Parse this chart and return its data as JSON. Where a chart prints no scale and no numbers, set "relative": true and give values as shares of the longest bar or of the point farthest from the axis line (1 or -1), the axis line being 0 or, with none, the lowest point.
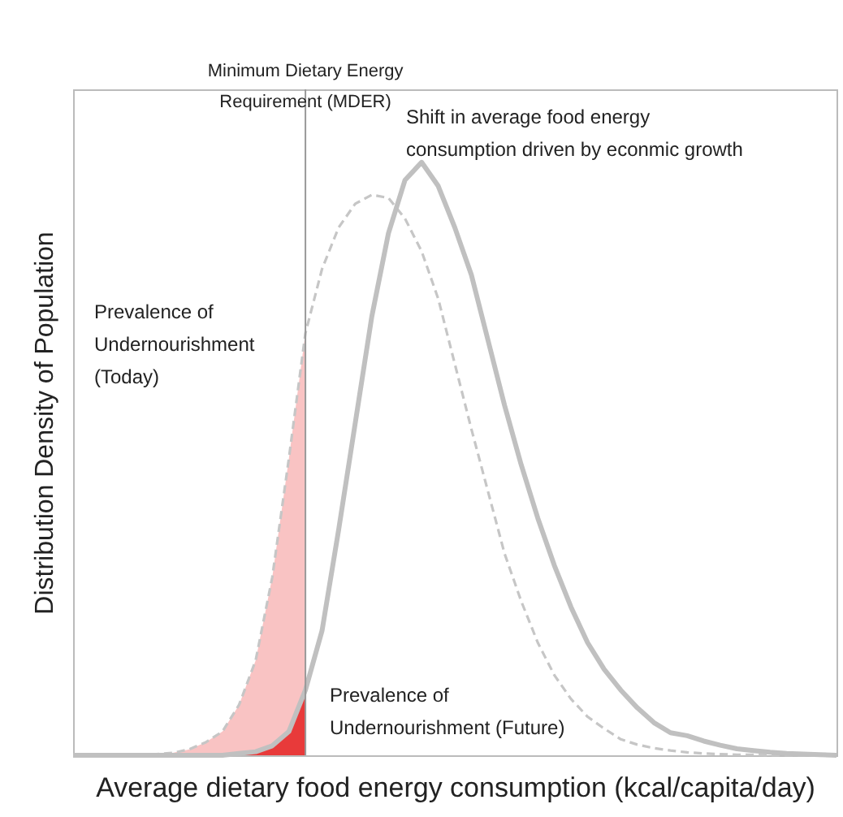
{
  "chart_data": {
    "type": "line",
    "relative": true,
    "xlabel": "Average dietary food energy consumption (kcal/capita/day)",
    "ylabel": "Distribution Density of Population",
    "categories": [
      null,
      null,
      null,
      null,
      null,
      null,
      null,
      null,
      null,
      null,
      null,
      null,
      null,
      null,
      null,
      null,
      null,
      null,
      null,
      null,
      null,
      null,
      null,
      null,
      null,
      null,
      null,
      null,
      null,
      null,
      null,
      null,
      null,
      null,
      null,
      null,
      null,
      null,
      null,
      null,
      null,
      null,
      null,
      null,
      null,
      null,
      null
    ],
    "tick_labels": false,
    "series": [
      {
        "type": "area",
        "color": "#f9c3c3",
        "values": [
          0,
          0,
          0,
          0.001,
          0.001,
          0.002,
          0.004,
          0.01,
          0.022,
          0.04,
          0.085,
          0.16,
          0.3,
          0.5,
          0.712,
          null,
          null,
          null,
          null,
          null,
          null,
          null,
          null,
          null,
          null,
          null,
          null,
          null,
          null,
          null,
          null,
          null,
          null,
          null,
          null,
          null,
          null,
          null,
          null,
          null,
          null,
          null,
          null,
          null,
          null,
          null,
          null
        ]
      },
      {
        "type": "area",
        "color": "#e83a3a",
        "values": [
          0,
          0,
          0,
          0,
          0,
          0,
          0,
          0,
          0,
          0,
          0.003,
          0.006,
          0.016,
          0.04,
          0.11,
          null,
          null,
          null,
          null,
          null,
          null,
          null,
          null,
          null,
          null,
          null,
          null,
          null,
          null,
          null,
          null,
          null,
          null,
          null,
          null,
          null,
          null,
          null,
          null,
          null,
          null,
          null,
          null,
          null,
          null,
          null,
          null
        ]
      },
      {
        "color": "#c6c6c6",
        "line_style": "dashed",
        "values": [
          0,
          0,
          0,
          0.001,
          0.001,
          0.002,
          0.004,
          0.01,
          0.022,
          0.04,
          0.085,
          0.16,
          0.3,
          0.5,
          0.712,
          0.82,
          0.89,
          0.93,
          0.945,
          0.94,
          0.905,
          0.85,
          0.77,
          0.66,
          0.55,
          0.445,
          0.34,
          0.26,
          0.19,
          0.135,
          0.095,
          0.065,
          0.045,
          0.027,
          0.018,
          0.012,
          0.008,
          0.005,
          0.003,
          0.002,
          0.001,
          0.001,
          0,
          0,
          0,
          0,
          0
        ]
      },
      {
        "color": "#c0c0c0",
        "line_style": "solid",
        "values": [
          0,
          0,
          0,
          0,
          0,
          0,
          0,
          0,
          0,
          0,
          0.003,
          0.006,
          0.016,
          0.04,
          0.11,
          0.21,
          0.38,
          0.56,
          0.74,
          0.88,
          0.97,
          1,
          0.96,
          0.89,
          0.81,
          0.7,
          0.59,
          0.49,
          0.4,
          0.32,
          0.25,
          0.19,
          0.145,
          0.11,
          0.08,
          0.055,
          0.038,
          0.033,
          0.024,
          0.017,
          0.011,
          0.008,
          0.005,
          0.003,
          0.002,
          0.001,
          0
        ]
      }
    ],
    "annotations": [
      "Minimum Dietary Energy Requirement (MDER)",
      "Shift in average food energy consumption driven by econmic growth",
      "Prevalence of Undernourishment (Today)",
      "Prevalence of Undernourishment (Future)"
    ]
  }
}
